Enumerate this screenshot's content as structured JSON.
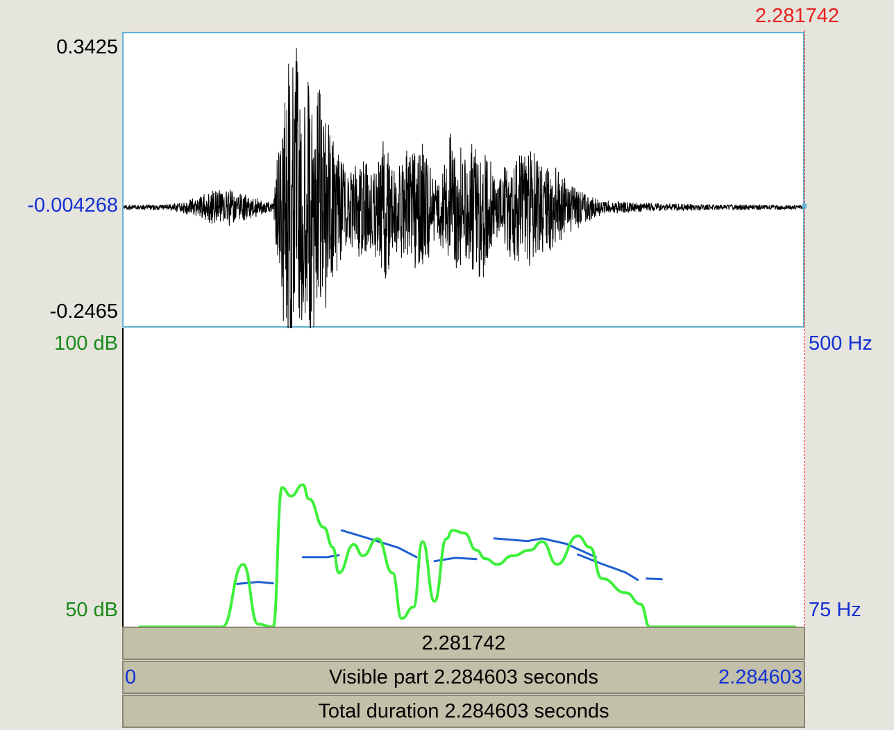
{
  "cursor": {
    "time_label": "2.281742",
    "time_label_color": "#e8201e",
    "cursor_color": "#e8201e"
  },
  "waveform": {
    "y_max_label": "0.3425",
    "y_mid_label": "-0.004268",
    "y_min_label": "-0.2465",
    "y_mid_color": "#1530d4",
    "line_color": "#000000",
    "border_color": "#5fb4d6"
  },
  "analysis": {
    "intensity_max_label": "100 dB",
    "intensity_min_label": "50 dB",
    "intensity_color": "#1a8a1a",
    "pitch_max_label": "500 Hz",
    "pitch_min_label": "75 Hz",
    "pitch_label_color": "#1530d4",
    "intensity_curve_color": "#3df03a",
    "pitch_curve_color": "#1e5fd0"
  },
  "bars": {
    "selection_time": "2.281742",
    "visible_start": "0",
    "visible_part_text": "Visible part 2.284603 seconds",
    "visible_end": "2.284603",
    "total_duration_text": "Total duration 2.284603 seconds"
  },
  "chart_data": {
    "type": "line",
    "duration_seconds": 2.284603,
    "waveform_envelope": {
      "x_seconds": [
        0.0,
        0.15,
        0.2,
        0.35,
        0.38,
        0.5,
        0.55,
        0.58,
        0.6,
        0.62,
        0.65,
        0.68,
        0.72,
        0.75,
        0.8,
        0.85,
        0.88,
        0.9,
        0.95,
        1.0,
        1.05,
        1.1,
        1.15,
        1.2,
        1.25,
        1.3,
        1.35,
        1.4,
        1.45,
        1.5,
        1.55,
        1.6,
        1.7,
        1.8,
        2.0,
        2.28
      ],
      "amplitude": [
        0.005,
        0.006,
        0.012,
        0.045,
        0.03,
        0.01,
        0.32,
        0.34,
        0.3,
        0.28,
        0.25,
        0.2,
        0.12,
        0.07,
        0.11,
        0.1,
        0.18,
        0.08,
        0.12,
        0.14,
        0.05,
        0.16,
        0.12,
        0.15,
        0.06,
        0.11,
        0.12,
        0.1,
        0.08,
        0.05,
        0.03,
        0.015,
        0.01,
        0.008,
        0.006,
        0.005
      ]
    },
    "intensity_db": {
      "x_seconds": [
        0.05,
        0.33,
        0.4,
        0.45,
        0.5,
        0.53,
        0.56,
        0.6,
        0.62,
        0.67,
        0.7,
        0.72,
        0.77,
        0.8,
        0.85,
        0.9,
        0.93,
        0.97,
        1.0,
        1.04,
        1.08,
        1.1,
        1.14,
        1.18,
        1.21,
        1.25,
        1.3,
        1.36,
        1.4,
        1.45,
        1.52,
        1.56,
        1.6,
        1.68,
        1.73,
        1.76,
        1.79,
        1.85,
        1.95,
        2.25
      ],
      "values": [
        47.5,
        47.5,
        58.5,
        48,
        47.5,
        72,
        70.5,
        72.5,
        70,
        65,
        61.5,
        57,
        62,
        60,
        63,
        57,
        49,
        51,
        62.5,
        52,
        63,
        64.5,
        64,
        61,
        59.5,
        58.5,
        60,
        61,
        62.5,
        58.5,
        63.5,
        61.5,
        56,
        53.5,
        51.5,
        47.5,
        47.5,
        47.5,
        47.5,
        47.5
      ]
    },
    "pitch_hz": {
      "segments": [
        {
          "x_seconds": [
            0.38,
            0.45,
            0.5
          ],
          "values": [
            118,
            121,
            119
          ]
        },
        {
          "x_seconds": [
            0.6,
            0.68,
            0.72
          ],
          "values": [
            158,
            158,
            161
          ]
        },
        {
          "x_seconds": [
            0.73,
            0.82,
            0.92,
            0.98
          ],
          "values": [
            198,
            186,
            172,
            158
          ]
        },
        {
          "x_seconds": [
            1.04,
            1.11,
            1.18
          ],
          "values": [
            152,
            157,
            155
          ]
        },
        {
          "x_seconds": [
            1.24,
            1.35,
            1.4,
            1.48,
            1.58
          ],
          "values": [
            186,
            182,
            186,
            178,
            158
          ]
        },
        {
          "x_seconds": [
            1.52,
            1.6,
            1.68,
            1.72
          ],
          "values": [
            162,
            148,
            135,
            124
          ]
        },
        {
          "x_seconds": [
            1.75,
            1.8
          ],
          "values": [
            126,
            125
          ]
        }
      ]
    },
    "intensity_ylim": [
      50,
      100
    ],
    "pitch_ylim": [
      75,
      500
    ]
  }
}
